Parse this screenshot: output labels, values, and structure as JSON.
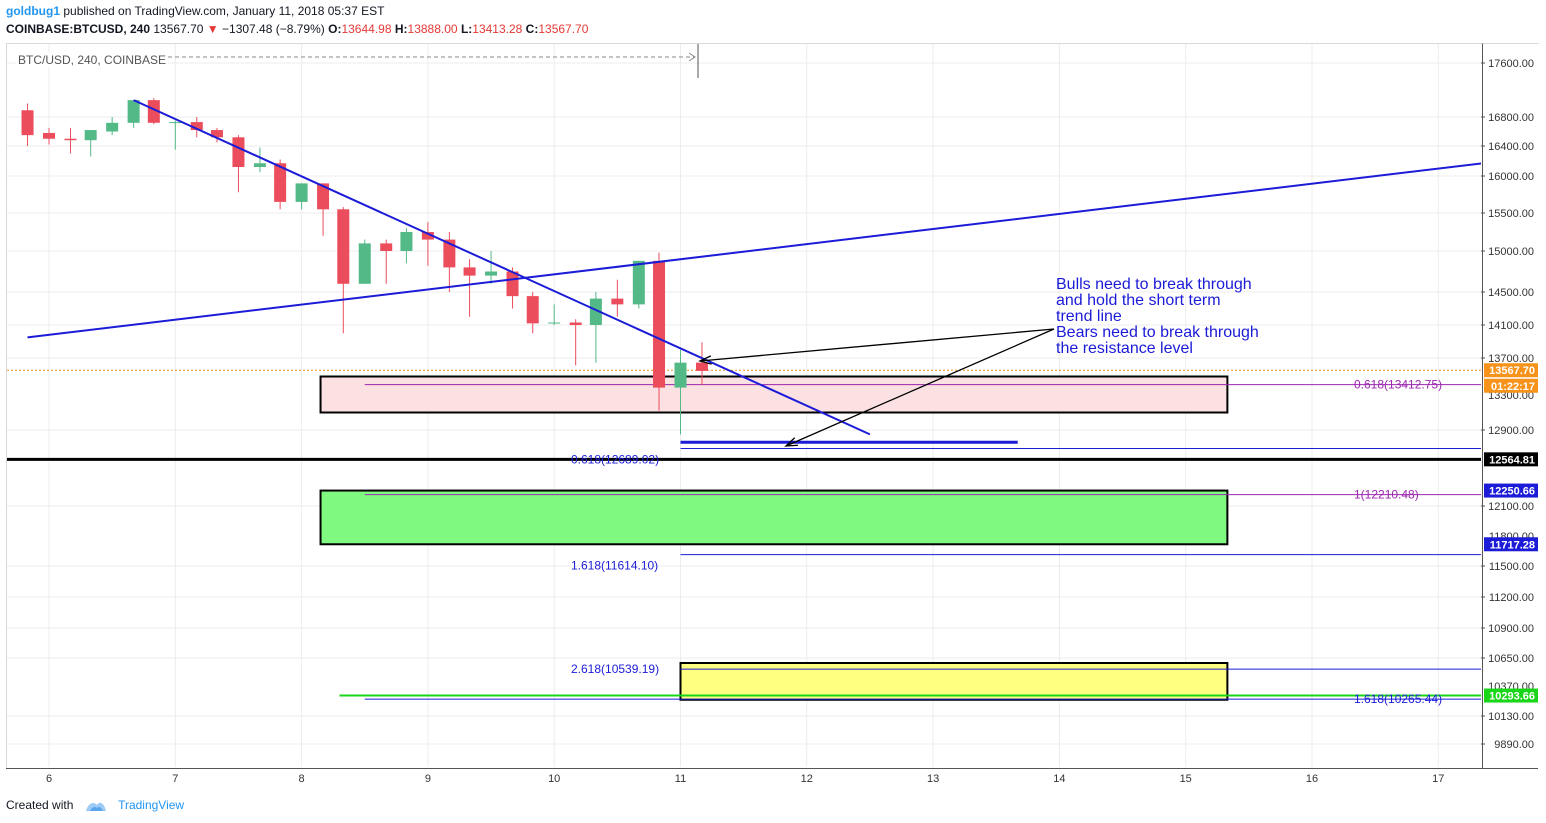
{
  "header": {
    "user": "goldbug1",
    "published": "published on TradingView.com, January 11, 2018 05:37 EST",
    "symbol": "COINBASE:BTCUSD, 240",
    "last": "13567.70",
    "change": "−1307.48 (−8.79%)",
    "o_label": "O:",
    "o": "13644.98",
    "h_label": "H:",
    "h": "13888.00",
    "l_label": "L:",
    "l": "13413.28",
    "c_label": "C:",
    "c": "13567.70"
  },
  "pane": {
    "symbol_label": "BTC/USD, 240, COINBASE"
  },
  "footer": {
    "created_with": "Created with",
    "brand": "TradingView"
  },
  "annotation": {
    "lines": [
      "Bulls need to break through",
      "and hold the short term",
      "trend line",
      "Bears need to break through",
      "the resistance level"
    ]
  },
  "colors": {
    "up": "#53b987",
    "down": "#eb4d5c",
    "line": "#1b1bd8",
    "fib": "#9c27b0"
  },
  "chart_data": {
    "type": "candlestick",
    "symbol": "BTC/USD",
    "interval": "240",
    "exchange": "COINBASE",
    "x_ticks": [
      "6",
      "7",
      "8",
      "9",
      "10",
      "11",
      "12",
      "13",
      "14",
      "15",
      "16",
      "17"
    ],
    "y_ticks": [
      17600,
      16800,
      16400,
      16000,
      15500,
      15000,
      14500,
      14100,
      13700,
      12900,
      12100,
      11500,
      11200,
      10900,
      10650,
      10130,
      9890
    ],
    "y_ticks_hidden_partial": [
      "13300.00",
      "11800.00",
      "10370.00"
    ],
    "ylim": [
      9700,
      17800
    ],
    "axis_badges": [
      {
        "label": "13567.70",
        "value": 13567.7,
        "color": "#f7931a"
      },
      {
        "label": "01:22:17",
        "value": 13400,
        "color": "#f7931a"
      },
      {
        "label": "12564.81",
        "value": 12564.81,
        "color": "#000000"
      },
      {
        "label": "12250.66",
        "value": 12250.66,
        "color": "#1b1bd8"
      },
      {
        "label": "11717.28",
        "value": 11717.28,
        "color": "#1b1bd8"
      },
      {
        "label": "10293.66",
        "value": 10293.66,
        "color": "#19d619"
      }
    ],
    "fib_labels": [
      {
        "text": "0.618(13412.75)",
        "value": 13412.75,
        "color": "#9c27b0"
      },
      {
        "text": "0.618(12689.02)",
        "value": 12689.02,
        "color": "#1b1bd8"
      },
      {
        "text": "1(12210.48)",
        "value": 12210.48,
        "color": "#9c27b0"
      },
      {
        "text": "1.618(11614.10)",
        "value": 11614.1,
        "color": "#1b1bd8"
      },
      {
        "text": "2.618(10539.19)",
        "value": 10539.19,
        "color": "#1b1bd8"
      },
      {
        "text": "1.618(10265.44)",
        "value": 10265.44,
        "color": "#1b1bd8"
      }
    ],
    "zones": [
      {
        "name": "resistance-zone",
        "from_x": 8.15,
        "to_x": 15.33,
        "top": 13500,
        "bottom": 13100,
        "fill": "#fbe1e1"
      },
      {
        "name": "support-zone-green",
        "from_x": 8.15,
        "to_x": 15.33,
        "top": 12250.66,
        "bottom": 11717.28,
        "fill": "#80f980"
      },
      {
        "name": "support-zone-yellow",
        "from_x": 11.0,
        "to_x": 15.33,
        "top": 10600,
        "bottom": 10260,
        "fill": "#ffff80"
      }
    ],
    "candles": [
      {
        "t": 5.83,
        "o": 16900,
        "h": 17000,
        "l": 16400,
        "c": 16550
      },
      {
        "t": 6.0,
        "o": 16580,
        "h": 16650,
        "l": 16420,
        "c": 16500
      },
      {
        "t": 6.17,
        "o": 16500,
        "h": 16650,
        "l": 16300,
        "c": 16480
      },
      {
        "t": 6.33,
        "o": 16480,
        "h": 16600,
        "l": 16260,
        "c": 16620
      },
      {
        "t": 6.5,
        "o": 16600,
        "h": 16800,
        "l": 16550,
        "c": 16720
      },
      {
        "t": 6.67,
        "o": 16720,
        "h": 17050,
        "l": 16650,
        "c": 17050
      },
      {
        "t": 6.83,
        "o": 17050,
        "h": 17080,
        "l": 16700,
        "c": 16720
      },
      {
        "t": 7.0,
        "o": 16720,
        "h": 16750,
        "l": 16350,
        "c": 16730
      },
      {
        "t": 7.17,
        "o": 16730,
        "h": 16800,
        "l": 16520,
        "c": 16620
      },
      {
        "t": 7.33,
        "o": 16620,
        "h": 16650,
        "l": 16450,
        "c": 16520
      },
      {
        "t": 7.5,
        "o": 16520,
        "h": 16550,
        "l": 15780,
        "c": 16120
      },
      {
        "t": 7.67,
        "o": 16120,
        "h": 16380,
        "l": 16050,
        "c": 16170
      },
      {
        "t": 7.83,
        "o": 16170,
        "h": 16220,
        "l": 15550,
        "c": 15650
      },
      {
        "t": 8.0,
        "o": 15650,
        "h": 15900,
        "l": 15550,
        "c": 15900
      },
      {
        "t": 8.17,
        "o": 15900,
        "h": 15900,
        "l": 15200,
        "c": 15550
      },
      {
        "t": 8.33,
        "o": 15550,
        "h": 15580,
        "l": 14000,
        "c": 14600
      },
      {
        "t": 8.5,
        "o": 14600,
        "h": 15150,
        "l": 14600,
        "c": 15100
      },
      {
        "t": 8.67,
        "o": 15100,
        "h": 15150,
        "l": 14600,
        "c": 15000
      },
      {
        "t": 8.83,
        "o": 15000,
        "h": 15300,
        "l": 14850,
        "c": 15250
      },
      {
        "t": 9.0,
        "o": 15250,
        "h": 15380,
        "l": 14820,
        "c": 15150
      },
      {
        "t": 9.17,
        "o": 15150,
        "h": 15250,
        "l": 14500,
        "c": 14800
      },
      {
        "t": 9.33,
        "o": 14800,
        "h": 14900,
        "l": 14200,
        "c": 14700
      },
      {
        "t": 9.5,
        "o": 14700,
        "h": 15000,
        "l": 14600,
        "c": 14750
      },
      {
        "t": 9.67,
        "o": 14750,
        "h": 14800,
        "l": 14300,
        "c": 14450
      },
      {
        "t": 9.83,
        "o": 14450,
        "h": 14500,
        "l": 14000,
        "c": 14120
      },
      {
        "t": 10.0,
        "o": 14120,
        "h": 14350,
        "l": 14100,
        "c": 14130
      },
      {
        "t": 10.17,
        "o": 14130,
        "h": 14170,
        "l": 13620,
        "c": 14100
      },
      {
        "t": 10.33,
        "o": 14100,
        "h": 14500,
        "l": 13650,
        "c": 14420
      },
      {
        "t": 10.5,
        "o": 14420,
        "h": 14650,
        "l": 14200,
        "c": 14350
      },
      {
        "t": 10.67,
        "o": 14350,
        "h": 14880,
        "l": 14300,
        "c": 14880
      },
      {
        "t": 10.83,
        "o": 14880,
        "h": 14980,
        "l": 13120,
        "c": 13380
      },
      {
        "t": 11.0,
        "o": 13380,
        "h": 13800,
        "l": 12850,
        "c": 13650
      },
      {
        "t": 11.17,
        "o": 13650,
        "h": 13890,
        "l": 13410,
        "c": 13560
      }
    ],
    "trend_lines": [
      {
        "name": "short-term-trend-line",
        "from": [
          6.67,
          17050
        ],
        "to": [
          12.5,
          12850
        ],
        "color": "#1b1bd8"
      },
      {
        "name": "rising-resistance-line",
        "from": [
          5.83,
          13950
        ],
        "to": [
          17.5,
          16200
        ],
        "color": "#1b1bd8"
      },
      {
        "name": "short-blue-level",
        "from": [
          11.0,
          12760
        ],
        "to": [
          13.67,
          12760
        ],
        "color": "#1b1bd8"
      }
    ],
    "levels": [
      {
        "name": "current-price",
        "value": 13567.7,
        "color": "#f7931a",
        "style": "dotted"
      },
      {
        "name": "key-support",
        "value": 12564.81,
        "color": "#000000",
        "style": "solid"
      },
      {
        "name": "green-support",
        "value": 10293.66,
        "color": "#19d619",
        "style": "solid"
      }
    ]
  }
}
